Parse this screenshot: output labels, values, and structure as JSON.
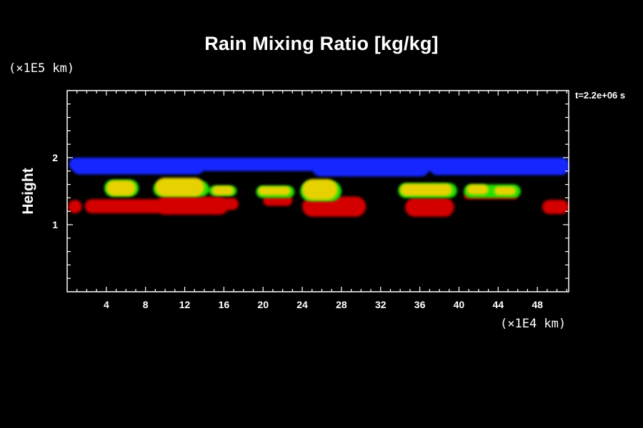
{
  "chart_data": {
    "type": "heatmap",
    "title": "Rain Mixing Ratio [kg/kg]",
    "ylabel": "Height",
    "y_unit_label": "(×1E5 km)",
    "x_unit_label": "(×1E4 km)",
    "time_label": "t=2.2e+06 s",
    "xlim": [
      0,
      51.2
    ],
    "ylim": [
      0,
      3.0
    ],
    "x_ticks": [
      "4",
      "8",
      "12",
      "16",
      "20",
      "24",
      "28",
      "32",
      "36",
      "40",
      "44",
      "48"
    ],
    "y_ticks": [
      "1",
      "2"
    ],
    "x_tick_values": [
      4,
      8,
      12,
      16,
      20,
      24,
      28,
      32,
      36,
      40,
      44,
      48
    ],
    "y_tick_values": [
      1,
      2
    ],
    "colors": {
      "blue": "#1428ff",
      "red": "#d40000",
      "yellow": "#e6d200",
      "green": "#22e000",
      "background": "#000000"
    },
    "layers": [
      {
        "color": "blue",
        "blobs": [
          {
            "x": 0.2,
            "x2": 51.2,
            "y": 1.8,
            "y2": 2.0
          },
          {
            "x": 0.5,
            "x2": 14.0,
            "y": 1.75,
            "y2": 1.97
          },
          {
            "x": 14.0,
            "x2": 25.0,
            "y": 1.8,
            "y2": 1.98
          },
          {
            "x": 25.0,
            "x2": 37.0,
            "y": 1.72,
            "y2": 1.98
          },
          {
            "x": 37.0,
            "x2": 51.2,
            "y": 1.74,
            "y2": 1.96
          }
        ]
      },
      {
        "color": "red",
        "blobs": [
          {
            "x": 0.1,
            "x2": 1.5,
            "y": 1.17,
            "y2": 1.37
          },
          {
            "x": 1.8,
            "x2": 13.0,
            "y": 1.17,
            "y2": 1.38
          },
          {
            "x": 9.0,
            "x2": 16.5,
            "y": 1.15,
            "y2": 1.42
          },
          {
            "x": 14.5,
            "x2": 17.5,
            "y": 1.22,
            "y2": 1.4
          },
          {
            "x": 20.0,
            "x2": 23.0,
            "y": 1.28,
            "y2": 1.45
          },
          {
            "x": 24.0,
            "x2": 30.5,
            "y": 1.12,
            "y2": 1.42
          },
          {
            "x": 34.5,
            "x2": 39.5,
            "y": 1.12,
            "y2": 1.4
          },
          {
            "x": 40.5,
            "x2": 46.0,
            "y": 1.38,
            "y2": 1.48
          },
          {
            "x": 48.5,
            "x2": 51.2,
            "y": 1.16,
            "y2": 1.37
          }
        ]
      },
      {
        "color": "green",
        "blobs": [
          {
            "x": 3.8,
            "x2": 7.3,
            "y": 1.42,
            "y2": 1.67
          },
          {
            "x": 8.8,
            "x2": 14.5,
            "y": 1.42,
            "y2": 1.65
          },
          {
            "x": 14.5,
            "x2": 17.3,
            "y": 1.43,
            "y2": 1.58
          },
          {
            "x": 19.3,
            "x2": 23.2,
            "y": 1.4,
            "y2": 1.58
          },
          {
            "x": 23.8,
            "x2": 28.0,
            "y": 1.35,
            "y2": 1.65
          },
          {
            "x": 33.8,
            "x2": 39.8,
            "y": 1.4,
            "y2": 1.62
          },
          {
            "x": 40.5,
            "x2": 46.3,
            "y": 1.4,
            "y2": 1.6
          }
        ]
      },
      {
        "color": "yellow",
        "blobs": [
          {
            "x": 4.0,
            "x2": 7.0,
            "y": 1.43,
            "y2": 1.66
          },
          {
            "x": 9.0,
            "x2": 14.0,
            "y": 1.42,
            "y2": 1.7
          },
          {
            "x": 14.8,
            "x2": 17.0,
            "y": 1.44,
            "y2": 1.58
          },
          {
            "x": 19.5,
            "x2": 22.8,
            "y": 1.44,
            "y2": 1.57
          },
          {
            "x": 24.0,
            "x2": 27.6,
            "y": 1.37,
            "y2": 1.68
          },
          {
            "x": 34.0,
            "x2": 39.3,
            "y": 1.43,
            "y2": 1.61
          },
          {
            "x": 40.8,
            "x2": 43.0,
            "y": 1.45,
            "y2": 1.6
          },
          {
            "x": 43.6,
            "x2": 45.8,
            "y": 1.44,
            "y2": 1.57
          }
        ]
      }
    ],
    "grid": false,
    "legend": "none"
  }
}
